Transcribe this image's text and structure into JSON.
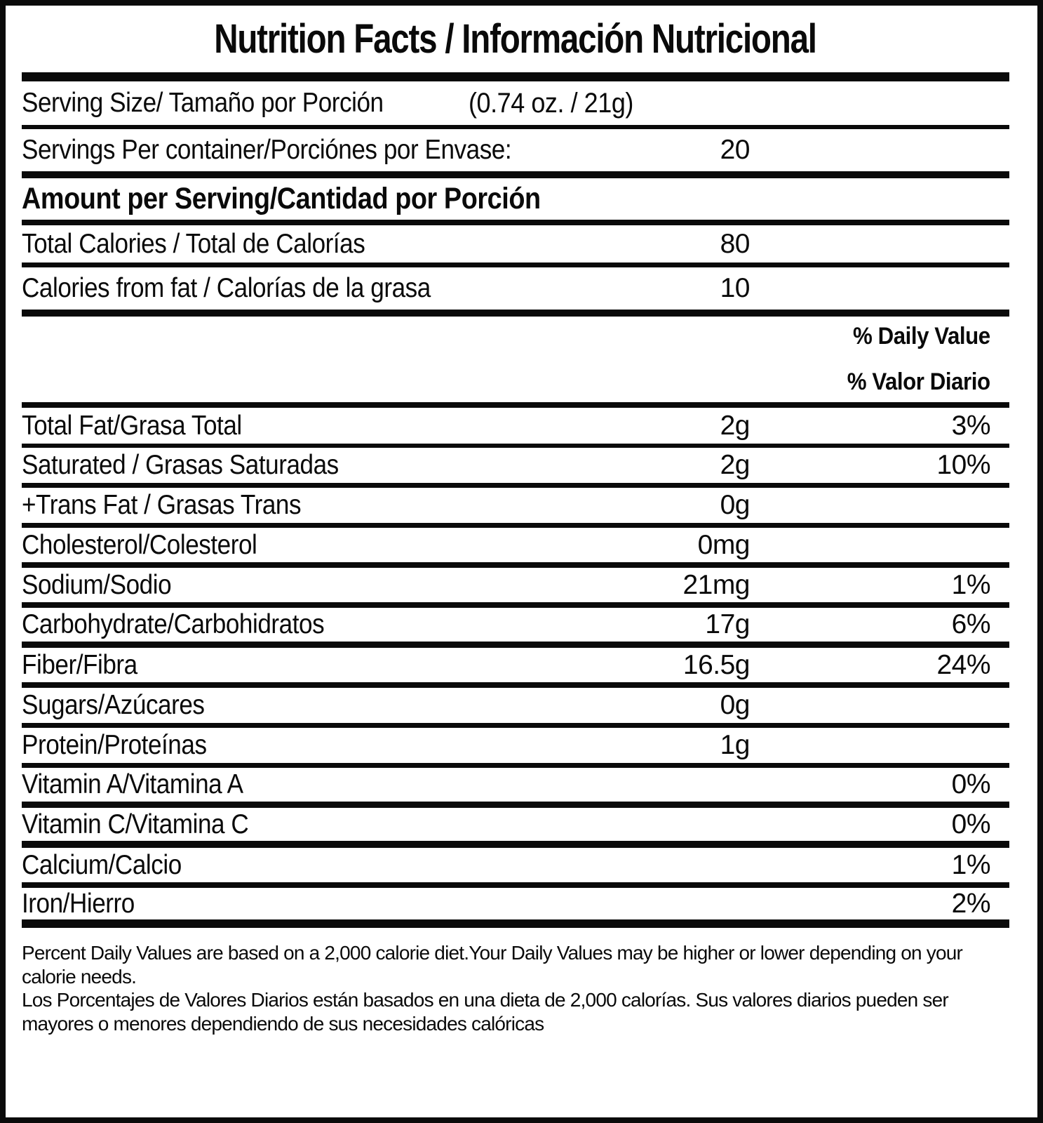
{
  "title": "Nutrition Facts / Información Nutricional",
  "serving": {
    "size_label": "Serving Size/ Tamaño por Porción",
    "size_value": "(0.74 oz. / 21g)",
    "per_container_label": "Servings Per container/Porciónes por Envase:",
    "per_container_value": "20"
  },
  "amount_header": "Amount per Serving/Cantidad por Porción",
  "calories": [
    {
      "label": "Total Calories / Total de Calorías",
      "value": "80"
    },
    {
      "label": "Calories from fat / Calorías de la grasa",
      "value": "10"
    }
  ],
  "daily_value_header": {
    "en": "% Daily Value",
    "es": "% Valor Diario"
  },
  "nutrients": [
    {
      "label": "Total Fat/Grasa Total",
      "amount": "2g",
      "dv": "3%"
    },
    {
      "label": "Saturated / Grasas Saturadas",
      "amount": "2g",
      "dv": "10%"
    },
    {
      "label": "+Trans Fat / Grasas Trans",
      "amount": "0g",
      "dv": ""
    },
    {
      "label": "Cholesterol/Colesterol",
      "amount": "0mg",
      "dv": ""
    },
    {
      "label": "Sodium/Sodio",
      "amount": "21mg",
      "dv": "1%"
    },
    {
      "label": "Carbohydrate/Carbohidratos",
      "amount": "17g",
      "dv": "6%"
    },
    {
      "label": "Fiber/Fibra",
      "amount": "16.5g",
      "dv": "24%"
    },
    {
      "label": "Sugars/Azúcares",
      "amount": "0g",
      "dv": ""
    },
    {
      "label": "Protein/Proteínas",
      "amount": "1g",
      "dv": ""
    },
    {
      "label": "Vitamin A/Vitamina A",
      "amount": "",
      "dv": "0%"
    },
    {
      "label": "Vitamin C/Vitamina C",
      "amount": "",
      "dv": "0%"
    },
    {
      "label": "Calcium/Calcio",
      "amount": "",
      "dv": "1%"
    },
    {
      "label": "Iron/Hierro",
      "amount": "",
      "dv": "2%"
    }
  ],
  "footnote": {
    "en": "Percent Daily Values are based on a 2,000 calorie diet.Your Daily Values may be higher or lower depending on your calorie needs.",
    "es": "Los Porcentajes de Valores Diarios están basados en una dieta de 2,000 calorías. Sus valores diarios pueden ser mayores o menores dependiendo de sus necesidades calóricas"
  },
  "colors": {
    "ink": "#0a0a0a",
    "background": "#ffffff"
  }
}
